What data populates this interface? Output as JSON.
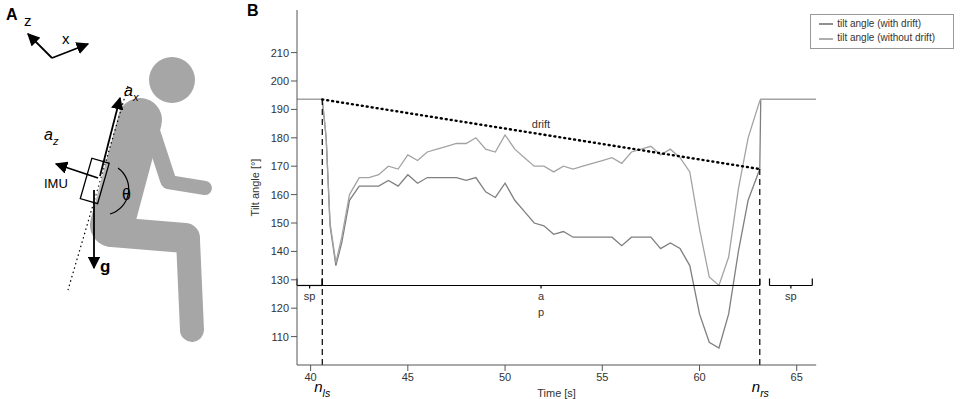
{
  "panel_labels": [
    "A",
    "B"
  ],
  "diagram": {
    "frame_axes": [
      "z",
      "x"
    ],
    "accel_x": {
      "base": "a",
      "sub": "x"
    },
    "accel_z": {
      "base": "a",
      "sub": "z"
    },
    "sensor": "IMU",
    "angle": "θ",
    "gravity": "g"
  },
  "chart_data": {
    "type": "line",
    "x_label": "Time [s]",
    "y_label": "Tilt angle [°]",
    "x": [
      39.3,
      40,
      40.6,
      40.8,
      41.0,
      41.3,
      41.6,
      42.0,
      42.5,
      43,
      43.5,
      44,
      44.5,
      45,
      45.5,
      46,
      46.5,
      47,
      47.5,
      48,
      48.5,
      49,
      49.5,
      50,
      50.5,
      51,
      51.5,
      52,
      52.5,
      53,
      53.5,
      54,
      54.5,
      55,
      55.5,
      56,
      56.5,
      57,
      57.5,
      58,
      58.5,
      59,
      59.5,
      60,
      60.5,
      61,
      61.5,
      62,
      62.5,
      63.1,
      63.15,
      64,
      65,
      66
    ],
    "series": [
      {
        "name": "tilt angle (with drift)",
        "color": "#7f7f7f",
        "values": [
          193.5,
          193.5,
          193.5,
          180,
          149,
          135,
          143,
          158,
          163,
          163,
          163,
          165,
          163,
          167,
          164,
          166,
          166,
          166,
          166,
          165,
          166,
          161,
          159,
          164,
          158,
          154,
          150,
          149,
          146,
          147,
          145,
          145,
          145,
          145,
          145,
          142,
          145,
          145,
          145,
          141,
          143,
          141,
          135,
          118,
          108,
          106,
          118,
          140,
          158,
          169,
          193.5,
          193.5,
          193.5,
          193.5
        ]
      },
      {
        "name": "tilt angle (without drift)",
        "color": "#a3a3a3",
        "values": [
          193.5,
          193.5,
          193.5,
          180,
          150,
          136,
          145,
          160,
          166,
          166,
          167,
          170,
          169,
          174,
          172,
          175,
          176,
          177,
          178,
          178,
          180,
          176,
          175,
          181,
          176,
          173,
          170,
          170,
          168,
          170,
          169,
          170,
          171,
          172,
          173,
          171,
          175,
          176,
          177,
          174,
          176,
          173,
          168,
          148,
          131,
          128,
          138,
          162,
          180,
          193,
          193.5,
          193.5,
          193.5,
          193.5
        ]
      }
    ],
    "xlim": [
      39.3,
      66
    ],
    "xticks": [
      40,
      45,
      50,
      55,
      60,
      65
    ],
    "ylim": [
      100,
      225
    ],
    "yticks": [
      110,
      120,
      130,
      140,
      150,
      160,
      170,
      180,
      190,
      200,
      210
    ],
    "grid": false,
    "legend": "upper right",
    "drift": {
      "label": "drift",
      "x": [
        40.6,
        63.1
      ],
      "values": [
        193.5,
        169
      ],
      "line_style": "dotted",
      "color": "#000000"
    },
    "markers": [
      {
        "x": 40.6,
        "top": 193.5,
        "label": {
          "base": "n",
          "sub": "ls"
        },
        "line_style": "dashed"
      },
      {
        "x": 63.1,
        "top": 169,
        "label": {
          "base": "n",
          "sub": "rs"
        },
        "line_style": "dashed"
      }
    ],
    "phases": [
      {
        "from": 39.3,
        "to": 40.6,
        "y": 128,
        "label": [
          "sp"
        ]
      },
      {
        "from": 40.6,
        "to": 63.1,
        "y": 128,
        "label": [
          "a",
          "p"
        ]
      },
      {
        "from": 63.6,
        "to": 65.8,
        "y": 128,
        "label": [
          "sp"
        ]
      }
    ]
  }
}
